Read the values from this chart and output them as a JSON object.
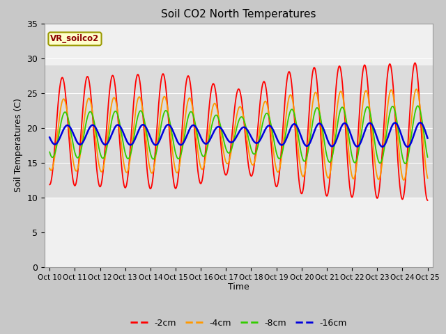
{
  "title": "Soil CO2 North Temperatures",
  "ylabel": "Soil Temperatures (C)",
  "xlabel": "Time",
  "ylim": [
    0,
    35
  ],
  "yticks": [
    0,
    5,
    10,
    15,
    20,
    25,
    30,
    35
  ],
  "colors": {
    "-2cm": "#ff0000",
    "-4cm": "#ff9900",
    "-8cm": "#33cc00",
    "-16cm": "#0000dd"
  },
  "legend_label": "VR_soilco2",
  "fig_bg": "#c8c8c8",
  "axes_bg": "#f0f0f0",
  "band_bg": "#dcdcdc",
  "grid_color": "#ffffff"
}
